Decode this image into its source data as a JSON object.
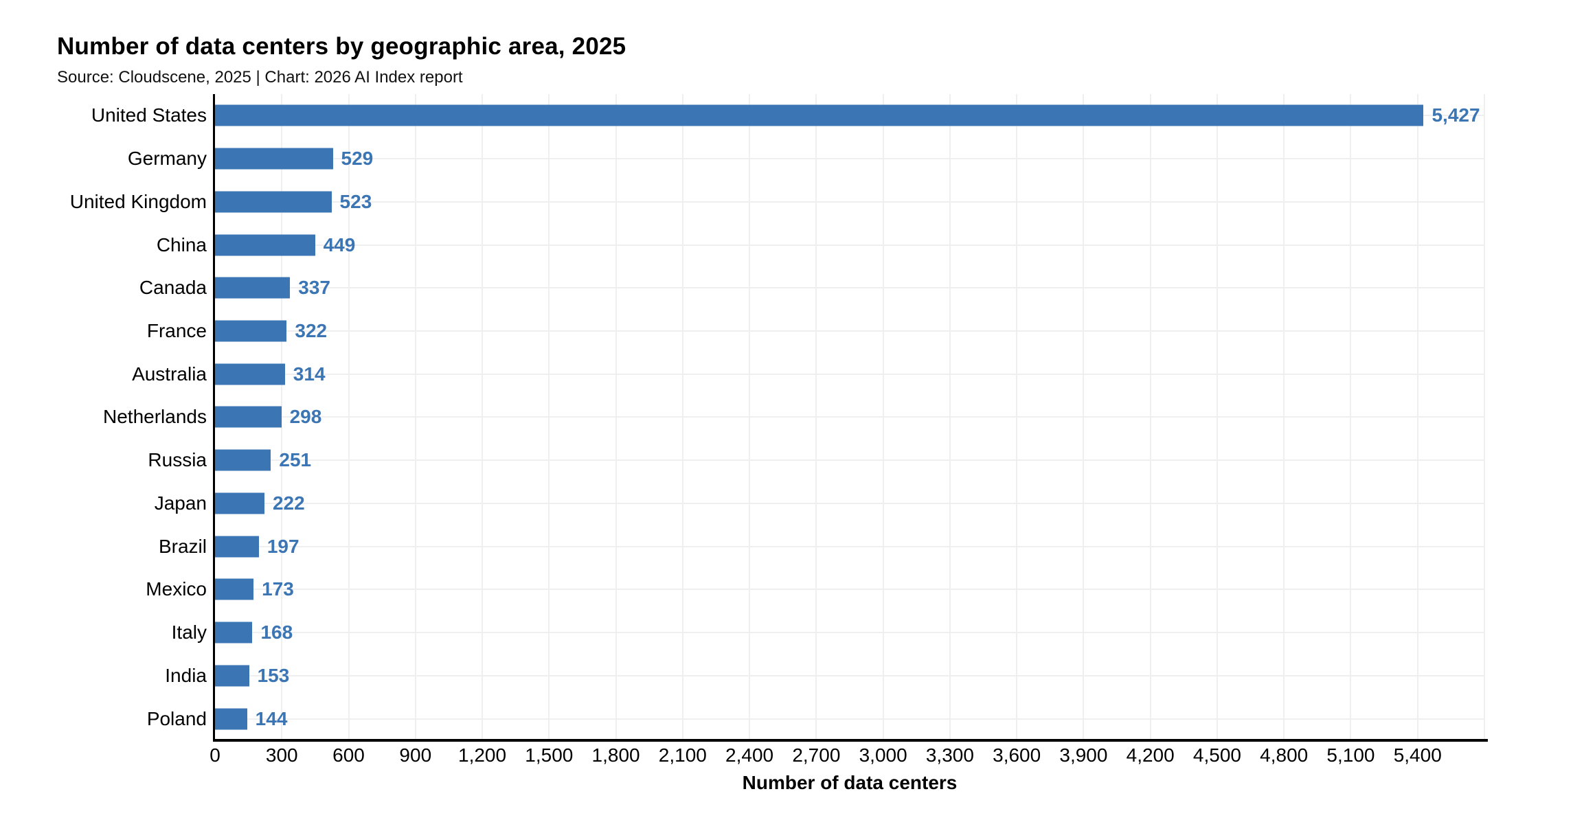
{
  "chart_data": {
    "type": "bar",
    "orientation": "horizontal",
    "title": "Number of data centers by geographic area, 2025",
    "subtitle": "Source: Cloudscene, 2025 | Chart: 2026 AI Index report",
    "categories": [
      "United States",
      "Germany",
      "United Kingdom",
      "China",
      "Canada",
      "France",
      "Australia",
      "Netherlands",
      "Russia",
      "Japan",
      "Brazil",
      "Mexico",
      "Italy",
      "India",
      "Poland"
    ],
    "values": [
      5427,
      529,
      523,
      449,
      337,
      322,
      314,
      298,
      251,
      222,
      197,
      173,
      168,
      153,
      144
    ],
    "value_labels": [
      "5,427",
      "529",
      "523",
      "449",
      "337",
      "322",
      "314",
      "298",
      "251",
      "222",
      "197",
      "173",
      "168",
      "153",
      "144"
    ],
    "xlabel": "Number of data centers",
    "xlim": [
      0,
      5700
    ],
    "xtick_step": 300,
    "xticks": [
      0,
      300,
      600,
      900,
      1200,
      1500,
      1800,
      2100,
      2400,
      2700,
      3000,
      3300,
      3600,
      3900,
      4200,
      4500,
      4800,
      5100,
      5400
    ],
    "xtick_labels": [
      "0",
      "300",
      "600",
      "900",
      "1,200",
      "1,500",
      "1,800",
      "2,100",
      "2,400",
      "2,700",
      "3,000",
      "3,300",
      "3,600",
      "3,900",
      "4,200",
      "4,500",
      "4,800",
      "5,100",
      "5,400"
    ],
    "grid": true,
    "legend": "none",
    "colors": {
      "bar": "#3C75B4",
      "value_label": "#3C75B4",
      "gridline": "#efefef",
      "axis": "#000000",
      "text": "#000000",
      "background": "#ffffff"
    }
  }
}
